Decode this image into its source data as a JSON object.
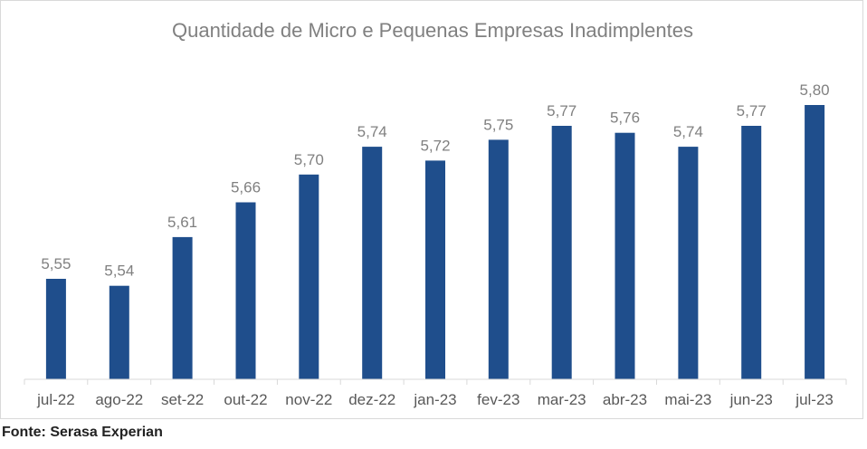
{
  "chart_data": {
    "type": "bar",
    "title": "Quantidade de Micro e Pequenas Empresas Inadimplentes",
    "categories": [
      "jul-22",
      "ago-22",
      "set-22",
      "out-22",
      "nov-22",
      "dez-22",
      "jan-23",
      "fev-23",
      "mar-23",
      "abr-23",
      "mai-23",
      "jun-23",
      "jul-23"
    ],
    "values": [
      5.55,
      5.54,
      5.61,
      5.66,
      5.7,
      5.74,
      5.72,
      5.75,
      5.77,
      5.76,
      5.74,
      5.77,
      5.8
    ],
    "data_labels": [
      "5,55",
      "5,54",
      "5,61",
      "5,66",
      "5,70",
      "5,74",
      "5,72",
      "5,75",
      "5,77",
      "5,76",
      "5,74",
      "5,77",
      "5,80"
    ],
    "ylim": [
      5.4,
      5.85
    ],
    "grid": false,
    "colors": {
      "bar": "#1f4e8c",
      "label": "#808080",
      "axis": "#d9d9d9"
    }
  },
  "footer": {
    "source": "Fonte: Serasa Experian"
  }
}
